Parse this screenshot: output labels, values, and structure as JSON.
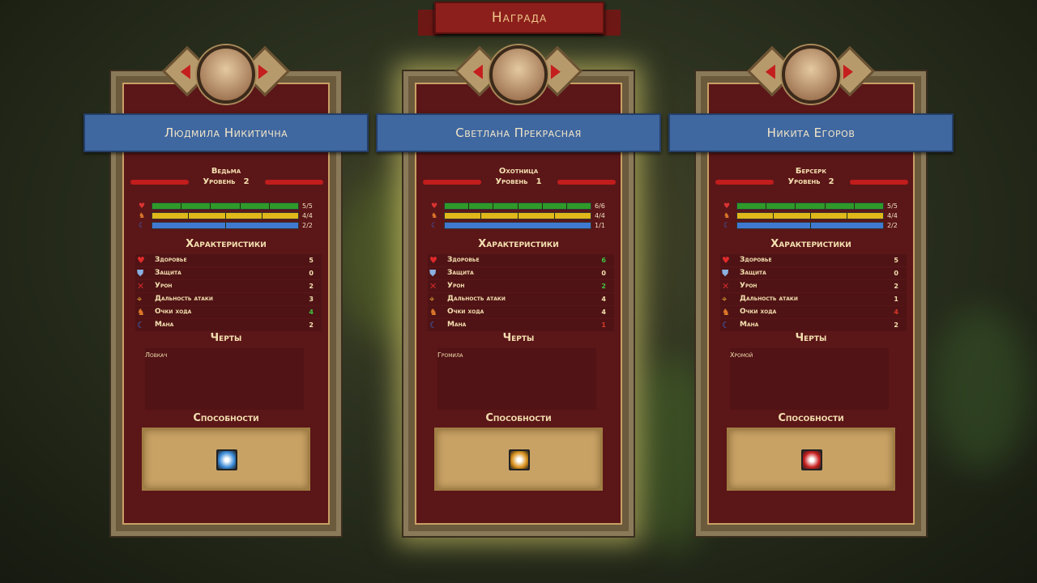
{
  "title": "Награда",
  "labels": {
    "level": "Уровень",
    "stats": "Характеристики",
    "traits": "Черты",
    "abilities": "Способности"
  },
  "heroes": [
    {
      "name": "Людмила Никитична",
      "class": "Ведьма",
      "level": "2",
      "selected": false,
      "bars": {
        "health": "5/5",
        "moves": "4/4",
        "mana": "2/2"
      },
      "stats": [
        {
          "label": "Здоровье",
          "value": "5",
          "color": "#f4e0b0"
        },
        {
          "label": "Защита",
          "value": "0",
          "color": "#f4e0b0"
        },
        {
          "label": "Урон",
          "value": "2",
          "color": "#f4e0b0"
        },
        {
          "label": "Дальность атаки",
          "value": "3",
          "color": "#f4e0b0"
        },
        {
          "label": "Очки хода",
          "value": "4",
          "color": "#3ec43e"
        },
        {
          "label": "Мана",
          "value": "2",
          "color": "#f4e0b0"
        }
      ],
      "traits": "Ловкач",
      "ability_icon": "frost-star-icon",
      "ability_color": "#3a8ad8"
    },
    {
      "name": "Светлана Прекрасная",
      "class": "Охотница",
      "level": "1",
      "selected": true,
      "bars": {
        "health": "6/6",
        "moves": "4/4",
        "mana": "1/1"
      },
      "stats": [
        {
          "label": "Здоровье",
          "value": "6",
          "color": "#3ec43e"
        },
        {
          "label": "Защита",
          "value": "0",
          "color": "#f4e0b0"
        },
        {
          "label": "Урон",
          "value": "2",
          "color": "#3ec43e"
        },
        {
          "label": "Дальность атаки",
          "value": "4",
          "color": "#f4e0b0"
        },
        {
          "label": "Очки хода",
          "value": "4",
          "color": "#f4e0b0"
        },
        {
          "label": "Мана",
          "value": "1",
          "color": "#d83a2a"
        }
      ],
      "traits": "Громила",
      "ability_icon": "fire-strike-icon",
      "ability_color": "#d8901a"
    },
    {
      "name": "Никита Егоров",
      "class": "Берсерк",
      "level": "2",
      "selected": false,
      "bars": {
        "health": "5/5",
        "moves": "4/4",
        "mana": "2/2"
      },
      "stats": [
        {
          "label": "Здоровье",
          "value": "5",
          "color": "#f4e0b0"
        },
        {
          "label": "Защита",
          "value": "0",
          "color": "#f4e0b0"
        },
        {
          "label": "Урон",
          "value": "2",
          "color": "#f4e0b0"
        },
        {
          "label": "Дальность атаки",
          "value": "1",
          "color": "#f4e0b0"
        },
        {
          "label": "Очки хода",
          "value": "4",
          "color": "#d83a2a"
        },
        {
          "label": "Мана",
          "value": "2",
          "color": "#f4e0b0"
        }
      ],
      "traits": "Хромой",
      "ability_icon": "blood-slash-icon",
      "ability_color": "#c81e1e"
    }
  ],
  "colors": {
    "health": "#2e9a2a",
    "moves": "#e0b81a",
    "mana": "#3f7ad0"
  }
}
